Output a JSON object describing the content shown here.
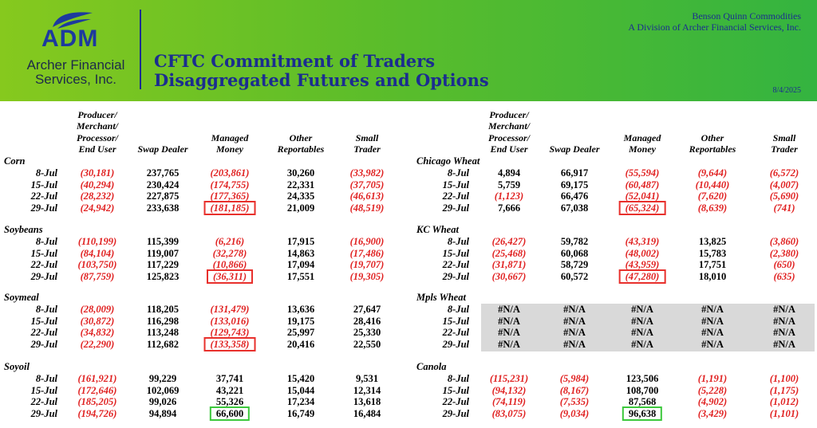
{
  "header": {
    "logo": "ADM",
    "company": [
      "Archer Financial",
      "Services, Inc."
    ],
    "title": [
      "CFTC Commitment of Traders",
      "Disaggregated Futures and Options"
    ],
    "firm": "Benson Quinn Commodities",
    "division": "A Division of Archer Financial Services, Inc.",
    "date": "8/4/2025"
  },
  "columns": [
    [
      "Producer/",
      "Merchant/",
      "Processor/",
      "End User"
    ],
    [
      "Swap Dealer"
    ],
    [
      "Managed",
      "Money"
    ],
    [
      "Other",
      "Reportables"
    ],
    [
      "Small",
      "Trader"
    ]
  ],
  "panels": [
    {
      "sections": [
        {
          "name": "Corn",
          "highlight": "#e8302c",
          "rows": [
            {
              "date": "8-Jul",
              "values": [
                "(30,181)",
                "237,765",
                "(203,861)",
                "30,260",
                "(33,982)"
              ]
            },
            {
              "date": "15-Jul",
              "values": [
                "(40,294)",
                "230,424",
                "(174,755)",
                "22,331",
                "(37,705)"
              ]
            },
            {
              "date": "22-Jul",
              "values": [
                "(28,232)",
                "227,875",
                "(177,365)",
                "24,335",
                "(46,613)"
              ]
            },
            {
              "date": "29-Jul",
              "values": [
                "(24,942)",
                "233,638",
                "(181,185)",
                "21,009",
                "(48,519)"
              ]
            }
          ]
        },
        {
          "name": "Soybeans",
          "highlight": "#e8302c",
          "rows": [
            {
              "date": "8-Jul",
              "values": [
                "(110,199)",
                "115,399",
                "(6,216)",
                "17,915",
                "(16,900)"
              ]
            },
            {
              "date": "15-Jul",
              "values": [
                "(84,104)",
                "119,007",
                "(32,278)",
                "14,863",
                "(17,486)"
              ]
            },
            {
              "date": "22-Jul",
              "values": [
                "(103,750)",
                "117,229",
                "(10,866)",
                "17,094",
                "(19,707)"
              ]
            },
            {
              "date": "29-Jul",
              "values": [
                "(87,759)",
                "125,823",
                "(36,311)",
                "17,551",
                "(19,305)"
              ]
            }
          ]
        },
        {
          "name": "Soymeal",
          "highlight": "#e8302c",
          "rows": [
            {
              "date": "8-Jul",
              "values": [
                "(28,009)",
                "118,205",
                "(131,479)",
                "13,636",
                "27,647"
              ]
            },
            {
              "date": "15-Jul",
              "values": [
                "(30,872)",
                "116,298",
                "(133,016)",
                "19,175",
                "28,416"
              ]
            },
            {
              "date": "22-Jul",
              "values": [
                "(34,832)",
                "113,248",
                "(129,743)",
                "25,997",
                "25,330"
              ]
            },
            {
              "date": "29-Jul",
              "values": [
                "(22,290)",
                "112,682",
                "(133,358)",
                "20,416",
                "22,550"
              ]
            }
          ]
        },
        {
          "name": "Soyoil",
          "highlight": "#3cc83c",
          "rows": [
            {
              "date": "8-Jul",
              "values": [
                "(161,921)",
                "99,229",
                "37,741",
                "15,420",
                "9,531"
              ]
            },
            {
              "date": "15-Jul",
              "values": [
                "(172,646)",
                "102,069",
                "43,221",
                "15,044",
                "12,314"
              ]
            },
            {
              "date": "22-Jul",
              "values": [
                "(185,205)",
                "99,026",
                "55,326",
                "17,234",
                "13,618"
              ]
            },
            {
              "date": "29-Jul",
              "values": [
                "(194,726)",
                "94,894",
                "66,600",
                "16,749",
                "16,484"
              ]
            }
          ]
        }
      ]
    },
    {
      "sections": [
        {
          "name": "Chicago Wheat",
          "highlight": "#e8302c",
          "rows": [
            {
              "date": "8-Jul",
              "values": [
                "4,894",
                "66,917",
                "(55,594)",
                "(9,644)",
                "(6,572)"
              ]
            },
            {
              "date": "15-Jul",
              "values": [
                "5,759",
                "69,175",
                "(60,487)",
                "(10,440)",
                "(4,007)"
              ]
            },
            {
              "date": "22-Jul",
              "values": [
                "(1,123)",
                "66,476",
                "(52,041)",
                "(7,620)",
                "(5,690)"
              ]
            },
            {
              "date": "29-Jul",
              "values": [
                "7,666",
                "67,038",
                "(65,324)",
                "(8,639)",
                "(741)"
              ]
            }
          ]
        },
        {
          "name": "KC Wheat",
          "highlight": "#e8302c",
          "rows": [
            {
              "date": "8-Jul",
              "values": [
                "(26,427)",
                "59,782",
                "(43,319)",
                "13,825",
                "(3,860)"
              ]
            },
            {
              "date": "15-Jul",
              "values": [
                "(25,468)",
                "60,068",
                "(48,002)",
                "15,783",
                "(2,380)"
              ]
            },
            {
              "date": "22-Jul",
              "values": [
                "(31,871)",
                "58,729",
                "(43,959)",
                "17,751",
                "(650)"
              ]
            },
            {
              "date": "29-Jul",
              "values": [
                "(30,667)",
                "60,572",
                "(47,280)",
                "18,010",
                "(635)"
              ]
            }
          ]
        },
        {
          "name": "Mpls Wheat",
          "shaded": true,
          "rows": [
            {
              "date": "8-Jul",
              "values": [
                "#N/A",
                "#N/A",
                "#N/A",
                "#N/A",
                "#N/A"
              ]
            },
            {
              "date": "15-Jul",
              "values": [
                "#N/A",
                "#N/A",
                "#N/A",
                "#N/A",
                "#N/A"
              ]
            },
            {
              "date": "22-Jul",
              "values": [
                "#N/A",
                "#N/A",
                "#N/A",
                "#N/A",
                "#N/A"
              ]
            },
            {
              "date": "29-Jul",
              "values": [
                "#N/A",
                "#N/A",
                "#N/A",
                "#N/A",
                "#N/A"
              ]
            }
          ]
        },
        {
          "name": "Canola",
          "highlight": "#3cc83c",
          "rows": [
            {
              "date": "8-Jul",
              "values": [
                "(115,231)",
                "(5,984)",
                "123,506",
                "(1,191)",
                "(1,100)"
              ]
            },
            {
              "date": "15-Jul",
              "values": [
                "(94,132)",
                "(8,167)",
                "108,700",
                "(5,228)",
                "(1,175)"
              ]
            },
            {
              "date": "22-Jul",
              "values": [
                "(74,119)",
                "(7,535)",
                "87,568",
                "(4,902)",
                "(1,012)"
              ]
            },
            {
              "date": "29-Jul",
              "values": [
                "(83,075)",
                "(9,034)",
                "96,638",
                "(3,429)",
                "(1,101)"
              ]
            }
          ]
        }
      ]
    }
  ]
}
